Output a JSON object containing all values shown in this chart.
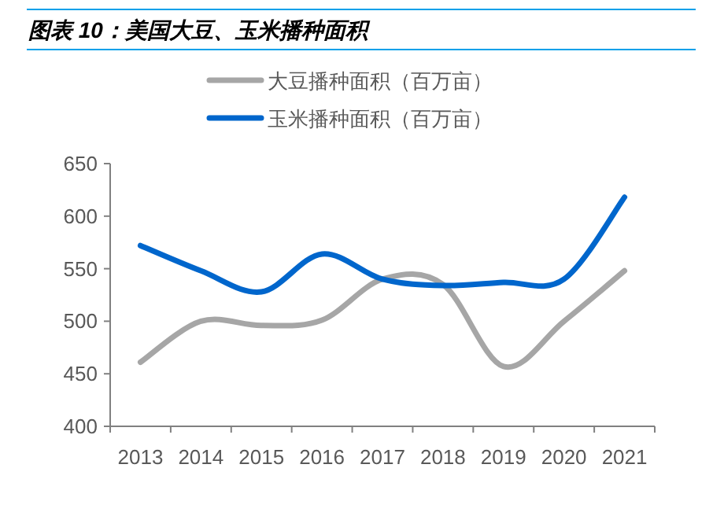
{
  "chart_data": {
    "type": "line",
    "title": "图表 10：美国大豆、玉米播种面积",
    "categories": [
      "2013",
      "2014",
      "2015",
      "2016",
      "2017",
      "2018",
      "2019",
      "2020",
      "2021"
    ],
    "series": [
      {
        "name": "大豆播种面积（百万亩）",
        "color": "#a6a6a6",
        "values": [
          461,
          500,
          496,
          501,
          540,
          535,
          457,
          500,
          548
        ]
      },
      {
        "name": "玉米播种面积（百万亩）",
        "color": "#0066cc",
        "values": [
          572,
          548,
          528,
          564,
          540,
          534,
          537,
          540,
          618
        ]
      }
    ],
    "ylim": [
      400,
      650
    ],
    "yticks": [
      400,
      450,
      500,
      550,
      600,
      650
    ],
    "grid": false,
    "legend": "top",
    "marker": "none",
    "line_style": "solid"
  }
}
